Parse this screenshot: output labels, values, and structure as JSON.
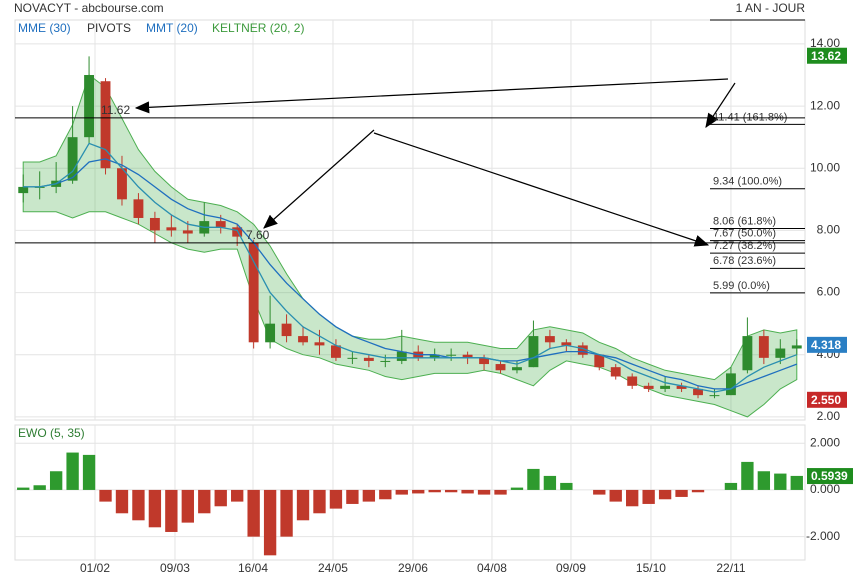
{
  "chart_data": [
    {
      "type": "candlestick",
      "title": "NOVACYT - abcbourse.com",
      "period": "1 AN - JOUR",
      "xlim": [
        0,
        48
      ],
      "ylim": [
        1.9,
        14.77
      ],
      "yticks": [
        {
          "value": 14,
          "label": "14.00"
        },
        {
          "value": 12,
          "label": "12.00"
        },
        {
          "value": 10,
          "label": "10.00"
        },
        {
          "value": 8,
          "label": "8.00"
        },
        {
          "value": 6,
          "label": "6.00"
        },
        {
          "value": 4,
          "label": "4.00"
        },
        {
          "value": 2,
          "label": "2.00"
        }
      ],
      "grid": true,
      "up_color": "#2e8b2e",
      "down_color": "#c0392b",
      "open": [
        9.2,
        9.4,
        9.4,
        9.6,
        11.0,
        12.8,
        10.0,
        9.0,
        8.4,
        8.1,
        8.0,
        7.9,
        8.3,
        8.1,
        7.6,
        4.4,
        5.0,
        4.6,
        4.4,
        4.3,
        3.9,
        3.9,
        3.8,
        3.8,
        4.1,
        3.9,
        4.0,
        4.0,
        3.9,
        3.7,
        3.5,
        3.6,
        4.6,
        4.4,
        4.3,
        4.0,
        3.6,
        3.3,
        3.0,
        2.9,
        3.0,
        2.9,
        2.7,
        2.7,
        3.5,
        4.6,
        3.9,
        4.2
      ],
      "high": [
        9.8,
        9.9,
        10.2,
        12.0,
        13.6,
        12.9,
        10.4,
        9.2,
        8.6,
        8.5,
        8.3,
        8.9,
        8.5,
        8.2,
        7.7,
        5.9,
        5.3,
        4.9,
        4.8,
        4.5,
        4.1,
        4.0,
        4.0,
        4.8,
        4.3,
        4.2,
        4.2,
        4.1,
        4.0,
        3.8,
        3.8,
        5.1,
        4.8,
        4.5,
        4.4,
        4.0,
        3.7,
        3.4,
        3.1,
        3.3,
        3.1,
        3.0,
        2.9,
        3.6,
        5.2,
        4.8,
        4.5,
        4.5
      ],
      "low": [
        8.9,
        9.0,
        9.2,
        9.5,
        10.8,
        9.8,
        8.8,
        8.2,
        7.6,
        7.8,
        7.6,
        7.8,
        7.9,
        7.5,
        4.2,
        4.2,
        4.4,
        4.3,
        4.0,
        3.8,
        3.7,
        3.6,
        3.6,
        3.7,
        3.8,
        3.8,
        3.8,
        3.7,
        3.5,
        3.4,
        3.4,
        3.6,
        4.2,
        4.1,
        3.9,
        3.5,
        3.2,
        2.9,
        2.8,
        2.8,
        2.8,
        2.6,
        2.6,
        2.7,
        3.4,
        3.7,
        3.7,
        4.0
      ],
      "close": [
        9.4,
        9.4,
        9.6,
        11.0,
        13.0,
        10.0,
        9.0,
        8.4,
        8.0,
        8.0,
        7.9,
        8.3,
        8.1,
        7.8,
        4.4,
        5.0,
        4.6,
        4.4,
        4.3,
        3.9,
        3.9,
        3.8,
        3.8,
        4.1,
        3.9,
        4.0,
        4.0,
        3.9,
        3.7,
        3.5,
        3.6,
        4.6,
        4.4,
        4.3,
        4.0,
        3.6,
        3.3,
        3.0,
        2.9,
        3.0,
        2.9,
        2.7,
        2.7,
        3.4,
        4.6,
        3.9,
        4.2,
        4.3
      ],
      "series": [
        {
          "name": "MME (30)",
          "color": "#1f6fbf",
          "values": [
            9.4,
            9.4,
            9.5,
            9.7,
            10.2,
            10.3,
            10.1,
            9.8,
            9.4,
            9.0,
            8.7,
            8.5,
            8.4,
            8.2,
            7.6,
            6.9,
            6.3,
            5.8,
            5.3,
            4.9,
            4.6,
            4.4,
            4.2,
            4.1,
            4.0,
            4.0,
            3.9,
            3.9,
            3.9,
            3.8,
            3.8,
            3.9,
            4.0,
            4.1,
            4.1,
            4.0,
            3.9,
            3.7,
            3.5,
            3.3,
            3.2,
            3.0,
            2.9,
            2.9,
            3.1,
            3.3,
            3.5,
            3.7
          ]
        },
        {
          "name": "MMT (20)",
          "color": "#2a8fb0",
          "values": [
            9.4,
            9.4,
            9.5,
            9.9,
            10.8,
            10.6,
            10.0,
            9.4,
            8.9,
            8.5,
            8.2,
            8.1,
            8.1,
            8.0,
            7.0,
            6.0,
            5.4,
            4.9,
            4.6,
            4.3,
            4.1,
            4.0,
            3.9,
            3.9,
            3.9,
            3.9,
            3.9,
            3.9,
            3.9,
            3.8,
            3.7,
            3.9,
            4.2,
            4.3,
            4.2,
            4.0,
            3.8,
            3.5,
            3.3,
            3.1,
            3.0,
            2.9,
            2.8,
            2.9,
            3.3,
            3.6,
            3.8,
            4.0
          ]
        }
      ],
      "keltner": {
        "name": "KELTNER (20, 2)",
        "color": "#4caf50",
        "upper": [
          10.2,
          10.2,
          10.4,
          11.4,
          13.0,
          12.6,
          11.6,
          10.6,
          9.9,
          9.4,
          9.0,
          8.9,
          8.8,
          8.6,
          8.2,
          7.5,
          6.6,
          5.8,
          5.3,
          4.9,
          4.6,
          4.5,
          4.5,
          4.6,
          4.5,
          4.4,
          4.4,
          4.4,
          4.3,
          4.2,
          4.2,
          4.8,
          4.9,
          4.8,
          4.7,
          4.4,
          4.2,
          3.9,
          3.7,
          3.5,
          3.4,
          3.3,
          3.2,
          3.6,
          4.6,
          4.8,
          4.7,
          4.8
        ],
        "lower": [
          8.6,
          8.6,
          8.6,
          8.4,
          8.6,
          8.6,
          8.4,
          8.2,
          7.9,
          7.6,
          7.4,
          7.3,
          7.4,
          7.4,
          5.8,
          4.5,
          4.2,
          4.0,
          3.9,
          3.7,
          3.6,
          3.5,
          3.3,
          3.2,
          3.3,
          3.4,
          3.4,
          3.4,
          3.5,
          3.4,
          3.2,
          3.0,
          3.5,
          3.8,
          3.7,
          3.6,
          3.4,
          3.1,
          2.9,
          2.7,
          2.6,
          2.5,
          2.4,
          2.2,
          2.0,
          2.4,
          2.9,
          3.2
        ]
      },
      "pivots": {
        "name": "PIVOTS",
        "levels": [
          {
            "value": 11.41,
            "label": "11.41  (161.8%)"
          },
          {
            "value": 9.34,
            "label": "9.34  (100.0%)"
          },
          {
            "value": 8.06,
            "label": "8.06  (61.8%)"
          },
          {
            "value": 7.67,
            "label": "7.67  (50.0%)"
          },
          {
            "value": 7.27,
            "label": "7.27  (38.2%)"
          },
          {
            "value": 6.78,
            "label": "6.78  (23.6%)"
          },
          {
            "value": 5.99,
            "label": "5.99  (0.0%)"
          }
        ]
      },
      "annotations": [
        {
          "value": 11.62,
          "label": "11.62"
        },
        {
          "value": 7.6,
          "label": "7.60"
        }
      ],
      "price_labels": [
        {
          "value": 13.62,
          "label": "13.62",
          "color": "#1e8c1e"
        },
        {
          "value": 4.318,
          "label": "4.318",
          "color": "#2a7fc4"
        },
        {
          "value": 2.55,
          "label": "2.550",
          "color": "#c62828"
        }
      ]
    },
    {
      "type": "histogram-bars",
      "title": "EWO (5, 35)",
      "xlim": [
        0,
        48
      ],
      "ylim": [
        -3.0,
        2.78
      ],
      "yticks": [
        {
          "value": 2,
          "label": "2.000"
        },
        {
          "value": 0,
          "label": "0.000"
        },
        {
          "value": -2,
          "label": "-2.000"
        }
      ],
      "xticks": [
        {
          "value": 4.86,
          "label": "01/02"
        },
        {
          "value": 9.72,
          "label": "09/03"
        },
        {
          "value": 14.46,
          "label": "16/04"
        },
        {
          "value": 19.32,
          "label": "24/05"
        },
        {
          "value": 24.18,
          "label": "29/06"
        },
        {
          "value": 28.98,
          "label": "04/08"
        },
        {
          "value": 33.78,
          "label": "09/09"
        },
        {
          "value": 38.64,
          "label": "15/10"
        },
        {
          "value": 43.5,
          "label": "22/11"
        }
      ],
      "grid": true,
      "up_color": "#2e9a2e",
      "down_color": "#c0392b",
      "values": [
        0.1,
        0.2,
        0.8,
        1.6,
        1.5,
        -0.5,
        -1.0,
        -1.3,
        -1.6,
        -1.8,
        -1.4,
        -1.0,
        -0.7,
        -0.5,
        -2.0,
        -2.8,
        -2.0,
        -1.3,
        -1.0,
        -0.8,
        -0.6,
        -0.5,
        -0.4,
        -0.2,
        -0.15,
        -0.1,
        -0.1,
        -0.15,
        -0.2,
        -0.2,
        0.1,
        0.9,
        0.6,
        0.3,
        0.0,
        -0.2,
        -0.5,
        -0.7,
        -0.6,
        -0.4,
        -0.3,
        -0.1,
        0.0,
        0.3,
        1.2,
        0.8,
        0.7,
        0.6
      ],
      "price_label": {
        "value": 0.5939,
        "color": "#1e8c1e"
      }
    }
  ]
}
